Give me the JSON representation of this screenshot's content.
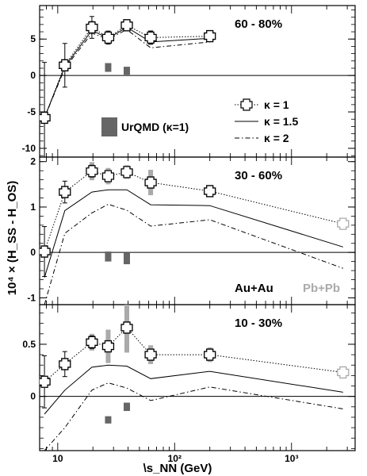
{
  "chart_data": {
    "type": "line",
    "x_axis": {
      "label": "\\s_NN (GeV)",
      "scale": "log",
      "range": [
        7,
        3500
      ],
      "tick_labels": [
        "10",
        "10²",
        "10³"
      ],
      "tick_values": [
        10,
        100,
        1000
      ]
    },
    "y_axis_label": "10⁴ × (H_SS - H_OS)",
    "annotations": {
      "au_au": "Au+Au",
      "pb_pb": "Pb+Pb"
    },
    "legend": {
      "urqmd": "UrQMD (κ=1)",
      "k1": "κ = 1",
      "k15": "κ = 1.5",
      "k2": "κ = 2"
    },
    "colors": {
      "data": "#000000",
      "pbpb": "#aaaaaa",
      "systematic": "#aaaaaa",
      "urqmd": "#666666"
    },
    "panels": [
      {
        "label": "60 - 80%",
        "ylim": [
          -11.2,
          9.6
        ],
        "y_ticks": [
          -10,
          -5,
          0,
          5
        ],
        "y_tick_labels": [
          "-10",
          "-5",
          "0",
          "5"
        ],
        "data": {
          "x": [
            7.7,
            11.5,
            19.6,
            27,
            39,
            62.4,
            200
          ],
          "y": [
            -5.8,
            1.4,
            6.6,
            5.2,
            6.9,
            5.2,
            5.4
          ],
          "stat_err": [
            7.6,
            3.0,
            1.5,
            0.9,
            0.7,
            0.9,
            0.5
          ],
          "sys_err": [
            0,
            0,
            0.9,
            0.5,
            0.6,
            1.0,
            0.5
          ]
        },
        "k1": {
          "x": [
            7.7,
            11.5,
            19.6,
            27,
            39,
            62.4,
            200
          ],
          "y": [
            -5.8,
            1.4,
            6.6,
            5.2,
            6.9,
            5.2,
            5.4
          ]
        },
        "k15": {
          "x": [
            7.7,
            11.5,
            19.6,
            27,
            39,
            62.4,
            200
          ],
          "y": [
            -5.8,
            1.2,
            6.2,
            5.1,
            6.6,
            4.6,
            5.1
          ]
        },
        "k2": {
          "x": [
            7.7,
            11.5,
            19.6,
            27,
            39,
            62.4,
            200
          ],
          "y": [
            -5.8,
            1.0,
            5.8,
            5.0,
            6.3,
            3.8,
            4.6
          ]
        },
        "urqmd": [
          {
            "x": 27,
            "y_lo": 0.5,
            "y_hi": 1.7
          },
          {
            "x": 39,
            "y_lo": 0.1,
            "y_hi": 1.2
          }
        ]
      },
      {
        "label": "30 - 60%",
        "ylim": [
          -1.15,
          2.1
        ],
        "y_ticks": [
          -1,
          0,
          1,
          2
        ],
        "y_tick_labels": [
          "-1",
          "0",
          "1",
          "2"
        ],
        "data": {
          "x": [
            7.7,
            11.5,
            19.6,
            27,
            39,
            62.4,
            200
          ],
          "y": [
            0.02,
            1.33,
            1.79,
            1.68,
            1.77,
            1.54,
            1.35
          ],
          "stat_err": [
            0.55,
            0.24,
            0.13,
            0.1,
            0.07,
            0.09,
            0.05
          ],
          "sys_err": [
            0,
            0,
            0.2,
            0.18,
            0.15,
            0.28,
            0.12
          ]
        },
        "pbpb": {
          "x": 2760,
          "y": 0.63,
          "err": 0.09
        },
        "k1": {
          "x": [
            7.7,
            11.5,
            19.6,
            27,
            39,
            62.4,
            200,
            2760
          ],
          "y": [
            0.02,
            1.33,
            1.79,
            1.68,
            1.77,
            1.54,
            1.35,
            0.63
          ]
        },
        "k15": {
          "x": [
            7.7,
            11.5,
            19.6,
            27,
            39,
            62.4,
            200,
            2760
          ],
          "y": [
            -0.55,
            0.92,
            1.33,
            1.38,
            1.38,
            1.05,
            1.03,
            0.12
          ]
        },
        "k2": {
          "x": [
            7.7,
            11.5,
            19.6,
            27,
            39,
            62.4,
            200,
            2760
          ],
          "y": [
            -1.15,
            0.42,
            0.87,
            1.06,
            0.93,
            0.58,
            0.72,
            -0.35
          ]
        },
        "urqmd": [
          {
            "x": 27,
            "y_lo": -0.2,
            "y_hi": 0.02
          },
          {
            "x": 39,
            "y_lo": -0.26,
            "y_hi": 0.0
          }
        ]
      },
      {
        "label": "10 - 30%",
        "ylim": [
          -0.52,
          0.88
        ],
        "y_ticks": [
          0,
          0.5
        ],
        "y_tick_labels": [
          "0",
          "0.5"
        ],
        "data": {
          "x": [
            7.7,
            11.5,
            19.6,
            27,
            39,
            62.4,
            200
          ],
          "y": [
            0.14,
            0.31,
            0.52,
            0.48,
            0.66,
            0.4,
            0.4
          ],
          "stat_err": [
            0.25,
            0.12,
            0.06,
            0.05,
            0.04,
            0.05,
            0.03
          ],
          "sys_err": [
            0,
            0,
            0.08,
            0.16,
            0.24,
            0.09,
            0.07
          ]
        },
        "pbpb": {
          "x": 2760,
          "y": 0.23,
          "err": 0.04
        },
        "k1": {
          "x": [
            7.7,
            11.5,
            19.6,
            27,
            39,
            62.4,
            200,
            2760
          ],
          "y": [
            0.14,
            0.31,
            0.52,
            0.48,
            0.66,
            0.4,
            0.4,
            0.23
          ]
        },
        "k15": {
          "x": [
            7.7,
            11.5,
            19.6,
            27,
            39,
            62.4,
            200,
            2760
          ],
          "y": [
            -0.17,
            0.06,
            0.28,
            0.3,
            0.29,
            0.17,
            0.24,
            0.04
          ]
        },
        "k2": {
          "x": [
            7.7,
            11.5,
            19.6,
            27,
            39,
            62.4,
            200,
            2760
          ],
          "y": [
            -0.52,
            -0.3,
            0.06,
            0.13,
            0.08,
            -0.04,
            0.09,
            -0.12
          ]
        },
        "urqmd": [
          {
            "x": 27,
            "y_lo": -0.26,
            "y_hi": -0.19
          },
          {
            "x": 39,
            "y_lo": -0.14,
            "y_hi": -0.06
          }
        ]
      }
    ]
  }
}
